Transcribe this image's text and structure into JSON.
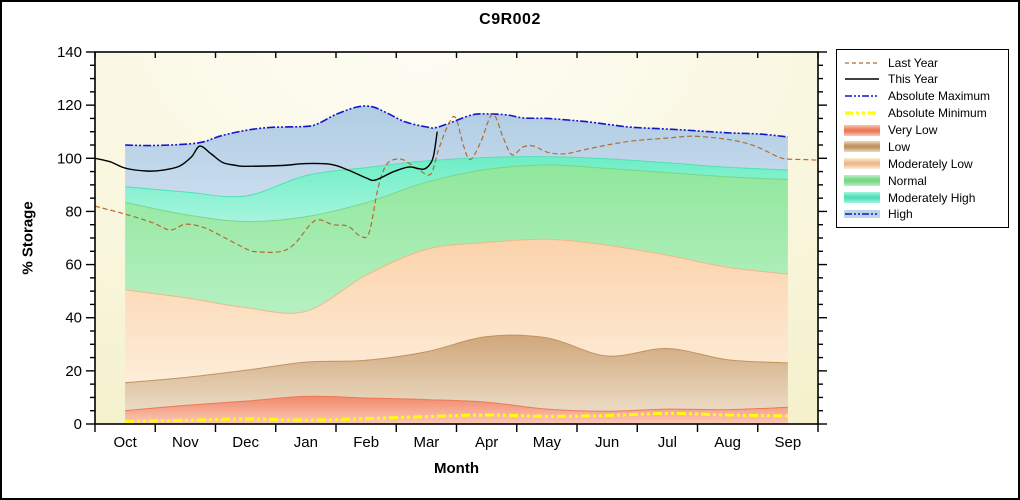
{
  "window": {
    "background": "#ffffff",
    "border_color": "#000000"
  },
  "title": "C9R002",
  "axes": {
    "x": {
      "label": "Month",
      "months": [
        "Oct",
        "Nov",
        "Dec",
        "Jan",
        "Feb",
        "Mar",
        "Apr",
        "May",
        "Jun",
        "Jul",
        "Aug",
        "Sep"
      ]
    },
    "y": {
      "label": "% Storage",
      "ticks": [
        0,
        20,
        40,
        60,
        80,
        100,
        120,
        140
      ],
      "minor_step": 5,
      "max": 140
    }
  },
  "legend": {
    "items": [
      {
        "label": "Last Year",
        "type": "line",
        "color": "#b26c2e",
        "width": 1.2,
        "dash": "4 3"
      },
      {
        "label": "This Year",
        "type": "line",
        "color": "#000000",
        "width": 1.4,
        "dash": null
      },
      {
        "label": "Absolute Maximum",
        "type": "line",
        "color": "#1414cc",
        "width": 1.6,
        "dash": "7 2 2 2 2 2"
      },
      {
        "label": "Absolute Minimum",
        "type": "line",
        "color": "#ffff00",
        "width": 3.2,
        "dash": "8 3 3 3 3 3"
      },
      {
        "label": "Very Low",
        "type": "band",
        "color": "#ea7a58",
        "color2": "#fac9b5"
      },
      {
        "label": "Low",
        "type": "band",
        "color": "#c1935f",
        "color2": "#ebdbc4"
      },
      {
        "label": "Moderately Low",
        "type": "band",
        "color": "#eeb98a",
        "color2": "#fdedd9"
      },
      {
        "label": "Normal",
        "type": "band",
        "color": "#79d787",
        "color2": "#b6f0c2"
      },
      {
        "label": "Moderately High",
        "type": "band",
        "color": "#50e0b8",
        "color2": "#a5f5dd"
      },
      {
        "label": "High",
        "type": "band-line",
        "color": "#1414cc",
        "color2": "#bdd5e9",
        "dash": "7 2 2 2 2 2"
      }
    ]
  },
  "chart_data": {
    "type": "area",
    "title": "C9R002",
    "xlabel": "Month",
    "ylabel": "% Storage",
    "x_categories": [
      "Oct",
      "Nov",
      "Dec",
      "Jan",
      "Feb",
      "Mar",
      "Apr",
      "May",
      "Jun",
      "Jul",
      "Aug",
      "Sep"
    ],
    "ylim": [
      0,
      140
    ],
    "y_major_step": 20,
    "y_minor_step": 5,
    "plot_background": {
      "from": "#fefdf4",
      "to": "#f4f0c9"
    },
    "bands": [
      {
        "name": "Very Low",
        "values": [
          5.0,
          7.0,
          8.6,
          10.4,
          9.8,
          9.2,
          8.2,
          5.6,
          4.8,
          5.6,
          5.4,
          6.3
        ],
        "color_top": "#f1896c",
        "color_bottom": "#fac9b5",
        "edge": "#ea7a58"
      },
      {
        "name": "Low",
        "values": [
          15.5,
          17.5,
          20.2,
          23.3,
          24.0,
          27.2,
          32.9,
          32.4,
          25.6,
          28.4,
          24.2,
          23.0
        ],
        "color_top": "#cfa77b",
        "color_bottom": "#ebdbc4",
        "edge": "#c1935f"
      },
      {
        "name": "Moderately Low",
        "values": [
          50.5,
          47.5,
          43.8,
          42.4,
          56.0,
          65.7,
          68.3,
          69.5,
          67.3,
          63.5,
          59.0,
          56.4
        ],
        "color_top": "#fbd3ab",
        "color_bottom": "#fdedd9",
        "edge": "#eeb98a"
      },
      {
        "name": "Normal",
        "values": [
          83.4,
          78.8,
          76.2,
          78.0,
          83.3,
          91.0,
          95.8,
          97.5,
          96.2,
          94.6,
          93.0,
          92.0
        ],
        "color_top": "#90e79c",
        "color_bottom": "#b6f0c2",
        "edge": "#79d787"
      },
      {
        "name": "Moderately High",
        "values": [
          89.3,
          87.3,
          85.8,
          93.5,
          96.5,
          99.0,
          100.3,
          100.6,
          99.8,
          98.3,
          96.6,
          95.6
        ],
        "color_top": "#6deec5",
        "color_bottom": "#a5f5dd",
        "edge": "#50e0b8"
      },
      {
        "name": "High",
        "top_line": "Absolute Maximum",
        "color_top": "#b0cce3",
        "color_bottom": "#c9dcee",
        "edge": null
      }
    ],
    "lines": [
      {
        "name": "Absolute Minimum",
        "color": "#ffff00",
        "width": 3.0,
        "dash": "9 3 3 3 3 3",
        "points": [
          [
            0,
            1.0
          ],
          [
            1,
            1.4
          ],
          [
            2,
            1.9
          ],
          [
            3,
            1.5
          ],
          [
            4,
            2.0
          ],
          [
            5,
            2.8
          ],
          [
            6,
            3.4
          ],
          [
            7,
            2.9
          ],
          [
            8,
            3.2
          ],
          [
            9,
            4.0
          ],
          [
            10,
            3.4
          ],
          [
            11,
            3.0
          ]
        ]
      },
      {
        "name": "Absolute Maximum",
        "color": "#1414cc",
        "width": 1.6,
        "dash": "8 2 2 2 2 2",
        "points": [
          [
            0,
            105
          ],
          [
            0.45,
            104.8
          ],
          [
            1,
            105.3
          ],
          [
            1.3,
            106.2
          ],
          [
            1.6,
            108.5
          ],
          [
            2,
            110.5
          ],
          [
            2.4,
            111.6
          ],
          [
            3,
            112
          ],
          [
            3.2,
            113
          ],
          [
            3.5,
            116.5
          ],
          [
            3.85,
            119.3
          ],
          [
            4.1,
            119.4
          ],
          [
            4.35,
            117
          ],
          [
            4.65,
            113.7
          ],
          [
            5,
            111.8
          ],
          [
            5.15,
            111.5
          ],
          [
            5.4,
            113.4
          ],
          [
            5.75,
            116.3
          ],
          [
            6,
            116.7
          ],
          [
            6.35,
            116.3
          ],
          [
            6.6,
            115.2
          ],
          [
            7,
            115
          ],
          [
            7.35,
            114.4
          ],
          [
            7.65,
            113.8
          ],
          [
            8,
            112.8
          ],
          [
            8.4,
            111.7
          ],
          [
            9,
            111
          ],
          [
            9.45,
            110.4
          ],
          [
            10,
            109.6
          ],
          [
            10.55,
            109.1
          ],
          [
            11,
            108
          ]
        ]
      },
      {
        "name": "Last Year",
        "color": "#b26c2e",
        "width": 1.2,
        "dash": "5 3",
        "points": [
          [
            -0.5,
            82
          ],
          [
            -0.3,
            80.8
          ],
          [
            0,
            79
          ],
          [
            0.45,
            75.8
          ],
          [
            0.75,
            73
          ],
          [
            1,
            75.2
          ],
          [
            1.3,
            74
          ],
          [
            1.55,
            71.3
          ],
          [
            2,
            66
          ],
          [
            2.15,
            64.9
          ],
          [
            2.55,
            64.8
          ],
          [
            2.8,
            67.5
          ],
          [
            3.15,
            76.5
          ],
          [
            3.45,
            75
          ],
          [
            3.7,
            74.4
          ],
          [
            3.9,
            70.8
          ],
          [
            4.05,
            72
          ],
          [
            4.2,
            89
          ],
          [
            4.35,
            98
          ],
          [
            4.57,
            99.7
          ],
          [
            4.72,
            98
          ],
          [
            4.88,
            95.6
          ],
          [
            5.07,
            94
          ],
          [
            5.2,
            103
          ],
          [
            5.35,
            112
          ],
          [
            5.48,
            115.4
          ],
          [
            5.62,
            104.5
          ],
          [
            5.73,
            99.5
          ],
          [
            5.9,
            106
          ],
          [
            6.1,
            116.6
          ],
          [
            6.27,
            108
          ],
          [
            6.42,
            101.3
          ],
          [
            6.6,
            104.2
          ],
          [
            6.78,
            104.6
          ],
          [
            7.02,
            102.2
          ],
          [
            7.3,
            101.7
          ],
          [
            7.6,
            103.1
          ],
          [
            8,
            105
          ],
          [
            8.45,
            106.6
          ],
          [
            9,
            107.6
          ],
          [
            9.42,
            108.3
          ],
          [
            9.9,
            107.4
          ],
          [
            10.25,
            106
          ],
          [
            10.52,
            104
          ],
          [
            10.85,
            100.4
          ],
          [
            11,
            99.7
          ],
          [
            11.3,
            99.5
          ],
          [
            11.5,
            99.3
          ]
        ]
      },
      {
        "name": "This Year",
        "color": "#000000",
        "width": 1.4,
        "dash": null,
        "points": [
          [
            -0.5,
            100
          ],
          [
            -0.25,
            98.7
          ],
          [
            0,
            96.3
          ],
          [
            0.35,
            95.2
          ],
          [
            0.62,
            95.5
          ],
          [
            0.9,
            97
          ],
          [
            1.1,
            100.5
          ],
          [
            1.24,
            104.6
          ],
          [
            1.42,
            101.8
          ],
          [
            1.62,
            98.4
          ],
          [
            1.85,
            97.3
          ],
          [
            2,
            97
          ],
          [
            2.6,
            97.3
          ],
          [
            3,
            98
          ],
          [
            3.42,
            97.7
          ],
          [
            3.72,
            95.4
          ],
          [
            4,
            92.6
          ],
          [
            4.15,
            91.8
          ],
          [
            4.45,
            94.9
          ],
          [
            4.7,
            96.7
          ],
          [
            4.82,
            96.4
          ],
          [
            4.95,
            95.9
          ],
          [
            5.05,
            97.5
          ],
          [
            5.12,
            101
          ],
          [
            5.18,
            110
          ]
        ]
      }
    ]
  }
}
